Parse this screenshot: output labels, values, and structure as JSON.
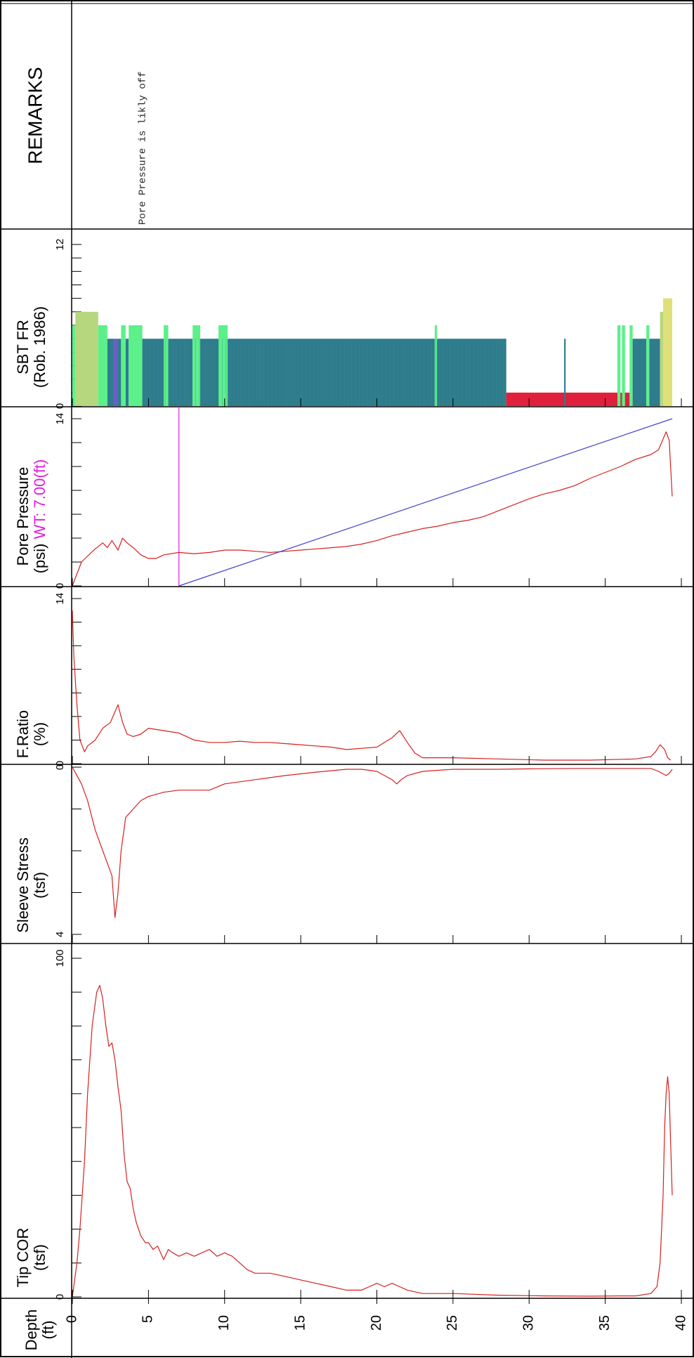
{
  "chart_data": {
    "type": "line",
    "title": "",
    "depth_axis": {
      "label_line1": "Depth",
      "label_line2": "(ft)",
      "range": [
        0,
        40
      ],
      "ticks": [
        0,
        5,
        10,
        15,
        20,
        25,
        30,
        35,
        40
      ]
    },
    "panels": [
      {
        "id": "tip",
        "label_line1": "Tip COR",
        "label_line2": "(tsf)",
        "range": [
          0,
          100
        ],
        "tick_labels": [
          "0",
          "100"
        ],
        "series": [
          {
            "color": "#d62020",
            "depth": [
              0,
              0.3,
              0.5,
              0.8,
              1.0,
              1.3,
              1.6,
              1.8,
              2.0,
              2.2,
              2.4,
              2.6,
              2.8,
              3.0,
              3.2,
              3.4,
              3.6,
              3.8,
              4.0,
              4.2,
              4.5,
              4.8,
              5.0,
              5.3,
              5.6,
              6.0,
              6.3,
              6.6,
              7.0,
              7.5,
              8.0,
              8.5,
              9.0,
              9.5,
              10.0,
              10.5,
              11.0,
              11.5,
              12.0,
              13.0,
              14.0,
              15.0,
              16.0,
              17.0,
              18.0,
              19.0,
              19.5,
              20.0,
              20.5,
              21.0,
              21.5,
              22.0,
              23.0,
              25.0,
              28.0,
              31.0,
              34.0,
              36.0,
              37.0,
              38.0,
              38.4,
              38.6,
              38.8,
              38.9,
              39.0,
              39.1,
              39.2,
              39.3,
              39.4
            ],
            "values": [
              0,
              10,
              20,
              40,
              60,
              80,
              90,
              92,
              88,
              80,
              74,
              75,
              70,
              62,
              55,
              42,
              34,
              32,
              26,
              22,
              18,
              16,
              16,
              14,
              15,
              11,
              14,
              13,
              12,
              13,
              12,
              13,
              14,
              12,
              13,
              12,
              10,
              8,
              7,
              7,
              6,
              5,
              4,
              3,
              2,
              2,
              3,
              4,
              3,
              4,
              3,
              2,
              1,
              1,
              0.5,
              0.3,
              0.2,
              0.3,
              0.3,
              1,
              3,
              10,
              30,
              50,
              60,
              65,
              60,
              45,
              30
            ]
          }
        ]
      },
      {
        "id": "sleeve",
        "label_line1": "Sleeve Stress",
        "label_line2": "(tsf)",
        "range": [
          0,
          4
        ],
        "tick_labels": [
          "4",
          "0"
        ],
        "series": [
          {
            "color": "#d62020",
            "depth": [
              0,
              0.3,
              0.6,
              1.0,
              1.5,
              2.0,
              2.3,
              2.6,
              2.8,
              3.0,
              3.2,
              3.5,
              4.0,
              4.5,
              5.0,
              6.0,
              7.0,
              8.0,
              9.0,
              10.0,
              12.0,
              14.0,
              16.0,
              18.0,
              19.0,
              20.0,
              20.5,
              21.0,
              21.3,
              21.6,
              22.0,
              23.0,
              25.0,
              28.0,
              30.0,
              33.0,
              36.0,
              38.0,
              38.5,
              39.0,
              39.2,
              39.4
            ],
            "values": [
              0,
              0.2,
              0.4,
              0.8,
              1.5,
              2.0,
              2.3,
              2.6,
              3.6,
              3.0,
              2.0,
              1.2,
              1.0,
              0.8,
              0.7,
              0.6,
              0.55,
              0.55,
              0.55,
              0.4,
              0.3,
              0.2,
              0.12,
              0.05,
              0.05,
              0.1,
              0.2,
              0.3,
              0.4,
              0.3,
              0.2,
              0.1,
              0.05,
              0.05,
              0.04,
              0.03,
              0.03,
              0.03,
              0.1,
              0.2,
              0.15,
              0.05
            ]
          }
        ]
      },
      {
        "id": "fratio",
        "label_line1": "F.Ratio",
        "label_line2": "(%)",
        "range": [
          0,
          14
        ],
        "tick_labels": [
          "0",
          "14"
        ],
        "series": [
          {
            "color": "#d62020",
            "depth": [
              0,
              0.1,
              0.3,
              0.5,
              0.8,
              1.0,
              1.5,
              2.0,
              2.5,
              3.0,
              3.3,
              3.6,
              4.0,
              4.5,
              5.0,
              6.0,
              7.0,
              8.0,
              9.0,
              10.0,
              11.0,
              12.0,
              13.0,
              14.0,
              15.0,
              16.0,
              17.0,
              18.0,
              19.0,
              20.0,
              20.5,
              21.0,
              21.5,
              22.0,
              22.5,
              23.0,
              25.0,
              28.0,
              31.0,
              34.0,
              37.0,
              38.0,
              38.3,
              38.6,
              38.9,
              39.1,
              39.3
            ],
            "values": [
              13,
              9,
              5,
              2,
              1,
              1.5,
              2,
              3,
              3.5,
              5,
              3.5,
              2.5,
              2.3,
              2.5,
              3,
              2.8,
              2.6,
              2.0,
              1.8,
              1.8,
              1.9,
              1.8,
              1.8,
              1.7,
              1.6,
              1.5,
              1.4,
              1.2,
              1.3,
              1.4,
              1.8,
              2.2,
              2.8,
              1.8,
              0.9,
              0.5,
              0.5,
              0.4,
              0.3,
              0.3,
              0.4,
              0.6,
              1.0,
              1.6,
              1.2,
              0.5,
              0.3
            ]
          }
        ]
      },
      {
        "id": "pore",
        "label_line1": "Pore Pressure",
        "label_line2": "(psi)",
        "wt_label": "WT: 7.00(ft)",
        "water_table_depth": 7.0,
        "range": [
          0,
          14
        ],
        "tick_labels": [
          "0",
          "14"
        ],
        "series": [
          {
            "color": "#d62020",
            "depth": [
              0,
              0.3,
              0.6,
              1.0,
              1.5,
              2.0,
              2.3,
              2.6,
              3.0,
              3.3,
              3.6,
              4.0,
              4.5,
              5.0,
              5.5,
              6.0,
              7.0,
              8.0,
              9.0,
              10.0,
              11.0,
              12.0,
              13.0,
              14.0,
              15.0,
              16.0,
              17.0,
              18.0,
              19.0,
              20.0,
              21.0,
              22.0,
              23.0,
              24.0,
              25.0,
              26.0,
              27.0,
              28.0,
              29.0,
              30.0,
              31.0,
              32.0,
              33.0,
              34.0,
              35.0,
              36.0,
              37.0,
              38.0,
              38.5,
              38.8,
              39.0,
              39.2,
              39.4
            ],
            "values": [
              0,
              1,
              2,
              2.5,
              3.1,
              3.6,
              3.2,
              3.8,
              3.0,
              4.0,
              3.6,
              3.2,
              2.6,
              2.3,
              2.3,
              2.6,
              2.8,
              2.7,
              2.8,
              3.0,
              3.0,
              2.9,
              2.8,
              2.9,
              3.0,
              3.1,
              3.2,
              3.3,
              3.5,
              3.8,
              4.2,
              4.5,
              4.8,
              5.0,
              5.3,
              5.5,
              5.8,
              6.3,
              6.8,
              7.3,
              7.7,
              8.0,
              8.4,
              9.0,
              9.5,
              10.0,
              10.6,
              11.0,
              11.4,
              12.3,
              12.9,
              12.2,
              7.5
            ]
          },
          {
            "color": "#4040cc",
            "depth": [
              7.0,
              39.4
            ],
            "values": [
              0,
              14
            ]
          }
        ]
      },
      {
        "id": "sbt",
        "label_line1": "SBT FR",
        "label_line2": "(Rob. 1986)",
        "range": [
          0,
          12
        ],
        "tick_labels": [
          "0",
          "12"
        ],
        "zones": [
          {
            "from": 0.0,
            "to": 0.2,
            "zone": 6,
            "color": "#5cf08a"
          },
          {
            "from": 0.2,
            "to": 1.7,
            "zone": 7,
            "color": "#b6d77e"
          },
          {
            "from": 1.7,
            "to": 2.3,
            "zone": 6,
            "color": "#5cf08a"
          },
          {
            "from": 2.3,
            "to": 2.7,
            "zone": 5,
            "color": "#2e7c8c"
          },
          {
            "from": 2.7,
            "to": 3.0,
            "zone": 5,
            "color": "#6a5fc8"
          },
          {
            "from": 3.0,
            "to": 3.2,
            "zone": 5,
            "color": "#2e7c8c"
          },
          {
            "from": 3.2,
            "to": 3.5,
            "zone": 6,
            "color": "#5cf08a"
          },
          {
            "from": 3.5,
            "to": 3.7,
            "zone": 5,
            "color": "#2e7c8c"
          },
          {
            "from": 3.7,
            "to": 4.6,
            "zone": 6,
            "color": "#5cf08a"
          },
          {
            "from": 4.6,
            "to": 6.0,
            "zone": 5,
            "color": "#2e7c8c"
          },
          {
            "from": 6.0,
            "to": 6.3,
            "zone": 6,
            "color": "#5cf08a"
          },
          {
            "from": 6.3,
            "to": 7.9,
            "zone": 5,
            "color": "#2e7c8c"
          },
          {
            "from": 7.9,
            "to": 8.4,
            "zone": 6,
            "color": "#5cf08a"
          },
          {
            "from": 8.4,
            "to": 9.6,
            "zone": 5,
            "color": "#2e7c8c"
          },
          {
            "from": 9.6,
            "to": 10.2,
            "zone": 6,
            "color": "#5cf08a"
          },
          {
            "from": 10.2,
            "to": 23.8,
            "zone": 5,
            "color": "#2e7c8c"
          },
          {
            "from": 23.8,
            "to": 23.95,
            "zone": 6,
            "color": "#5cf08a"
          },
          {
            "from": 23.95,
            "to": 28.5,
            "zone": 5,
            "color": "#2e7c8c"
          },
          {
            "from": 28.5,
            "to": 36.6,
            "zone": 1,
            "color": "#e0203c"
          },
          {
            "from": 32.3,
            "to": 32.4,
            "zone": 5,
            "color": "#2e7c8c"
          },
          {
            "from": 35.8,
            "to": 36.0,
            "zone": 6,
            "color": "#5cf08a"
          },
          {
            "from": 36.1,
            "to": 36.3,
            "zone": 6,
            "color": "#5cf08a"
          },
          {
            "from": 36.6,
            "to": 36.8,
            "zone": 6,
            "color": "#5cf08a"
          },
          {
            "from": 36.8,
            "to": 37.7,
            "zone": 5,
            "color": "#2e7c8c"
          },
          {
            "from": 37.7,
            "to": 37.9,
            "zone": 6,
            "color": "#5cf08a"
          },
          {
            "from": 37.9,
            "to": 38.6,
            "zone": 5,
            "color": "#2e7c8c"
          },
          {
            "from": 38.6,
            "to": 38.8,
            "zone": 7,
            "color": "#b6d77e"
          },
          {
            "from": 38.8,
            "to": 39.4,
            "zone": 8,
            "color": "#e0e07a"
          }
        ]
      },
      {
        "id": "remarks",
        "label_line1": "REMARKS",
        "remarks": [
          {
            "depth": 4.6,
            "text": "Pore Pressure is likly off"
          }
        ]
      }
    ]
  }
}
